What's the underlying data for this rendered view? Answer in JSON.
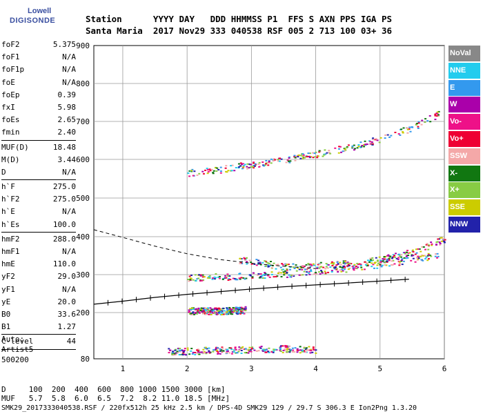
{
  "logo": {
    "line1": "Lowell",
    "line2": "DIGISONDE"
  },
  "header": {
    "row1": "Station      YYYY DAY   DDD HHMMSS P1  FFS S AXN PPS IGA PS",
    "row2": "Santa Maria  2017 Nov29 333 040538 RSF 005 2 713 100 03+ 36"
  },
  "params": [
    {
      "label": "foF2",
      "value": "5.375"
    },
    {
      "label": "foF1",
      "value": "N/A"
    },
    {
      "label": "foF1p",
      "value": "N/A"
    },
    {
      "label": "foE",
      "value": "N/A"
    },
    {
      "label": "foEp",
      "value": "0.39"
    },
    {
      "label": "fxI",
      "value": "5.98"
    },
    {
      "label": "foEs",
      "value": "2.65"
    },
    {
      "label": "fmin",
      "value": "2.40"
    },
    {
      "sep": true
    },
    {
      "label": "MUF(D)",
      "value": "18.48"
    },
    {
      "label": "M(D)",
      "value": "3.44"
    },
    {
      "label": "D",
      "value": "N/A"
    },
    {
      "sep": true
    },
    {
      "label": "h`F",
      "value": "275.0"
    },
    {
      "label": "h`F2",
      "value": "275.0"
    },
    {
      "label": "h`E",
      "value": "N/A"
    },
    {
      "label": "h`Es",
      "value": "100.0"
    },
    {
      "sep": true
    },
    {
      "label": "hmF2",
      "value": "288.0"
    },
    {
      "label": "hmF1",
      "value": "N/A"
    },
    {
      "label": "hmE",
      "value": "110.0"
    },
    {
      "label": "yF2",
      "value": "29.0"
    },
    {
      "label": "yF1",
      "value": "N/A"
    },
    {
      "label": "yE",
      "value": "20.0"
    },
    {
      "label": "B0",
      "value": "33.6"
    },
    {
      "label": "B1",
      "value": "1.27"
    },
    {
      "sep": true
    },
    {
      "label": "C-level",
      "value": "44"
    },
    {
      "sep": true
    }
  ],
  "auto": {
    "line1": "Auto:",
    "line2": "Artist5",
    "line3": "500200"
  },
  "legend": [
    {
      "label": "NoVal",
      "color": "#888888"
    },
    {
      "label": "NNE",
      "color": "#22ccee"
    },
    {
      "label": "E",
      "color": "#3399ee"
    },
    {
      "label": "W",
      "color": "#aa00aa"
    },
    {
      "label": "Vo-",
      "color": "#ee1188"
    },
    {
      "label": "Vo+",
      "color": "#ee0033"
    },
    {
      "label": "SSW",
      "color": "#f4a8a8"
    },
    {
      "label": "X-",
      "color": "#117711"
    },
    {
      "label": "X+",
      "color": "#88cc44"
    },
    {
      "label": "SSE",
      "color": "#cccc00"
    },
    {
      "label": "NNW",
      "color": "#2222aa"
    }
  ],
  "footer": {
    "line1": "D     100  200  400  600  800 1000 1500 3000 [km]",
    "line2": "MUF   5.7  5.8  6.0  6.5  7.2  8.2 11.0 18.5 [MHz]",
    "line3": "SMK29_2017333040538.RSF / 220fx512h 25 kHz 2.5 km / DPS-4D SMK29 129 / 29.7 S 306.3 E Ion2Png 1.3.20"
  },
  "chart_data": {
    "type": "scatter",
    "x_ticks": [
      "1",
      "2",
      "3",
      "4",
      "5",
      "6"
    ],
    "y_ticks": [
      "80",
      "200",
      "300",
      "400",
      "500",
      "600",
      "700",
      "800",
      "900"
    ],
    "xlim": [
      0.55,
      6
    ],
    "y_tick_values": [
      80,
      200,
      300,
      400,
      500,
      600,
      700,
      800,
      900
    ],
    "grid": true,
    "traces": [
      {
        "name": "F2 O-trace",
        "color_mix": "mixed",
        "x": [
          2.0,
          2.5,
          3.0,
          3.5,
          4.0,
          4.5,
          5.0,
          5.5,
          5.9
        ],
        "y": [
          293,
          295,
          298,
          303,
          310,
          318,
          328,
          340,
          355
        ]
      },
      {
        "name": "F2 X-trace",
        "color_mix": "mixed",
        "x": [
          2.8,
          3.5,
          4.0,
          4.5,
          5.0,
          5.5,
          6.0
        ],
        "y": [
          340,
          322,
          325,
          330,
          340,
          360,
          395
        ]
      },
      {
        "name": "Second hop",
        "color_mix": "mixed",
        "x": [
          2.0,
          2.5,
          3.0,
          3.5,
          4.0,
          4.5,
          5.0,
          5.5,
          5.9
        ],
        "y": [
          565,
          575,
          588,
          600,
          615,
          632,
          655,
          685,
          720
        ]
      },
      {
        "name": "Es",
        "color_mix": "mixed",
        "x": [
          2.0,
          2.5,
          2.9
        ],
        "y": [
          205,
          205,
          208
        ]
      },
      {
        "name": "Es low",
        "color_mix": "mixed",
        "x": [
          1.7,
          2.5,
          3.5,
          4.0
        ],
        "y": [
          100,
          103,
          107,
          105
        ]
      }
    ],
    "profile_line": {
      "x": [
        0.55,
        1.0,
        1.5,
        2.0,
        2.5,
        3.0,
        3.5,
        4.0,
        4.5,
        5.0,
        5.45
      ],
      "y": [
        222,
        230,
        240,
        248,
        255,
        262,
        268,
        273,
        278,
        283,
        288
      ]
    },
    "dashed_curve": {
      "x": [
        0.55,
        1.0,
        1.5,
        2.0,
        2.5,
        3.0,
        3.5,
        4.0
      ],
      "y": [
        418,
        398,
        375,
        355,
        340,
        330,
        322,
        316
      ]
    }
  }
}
